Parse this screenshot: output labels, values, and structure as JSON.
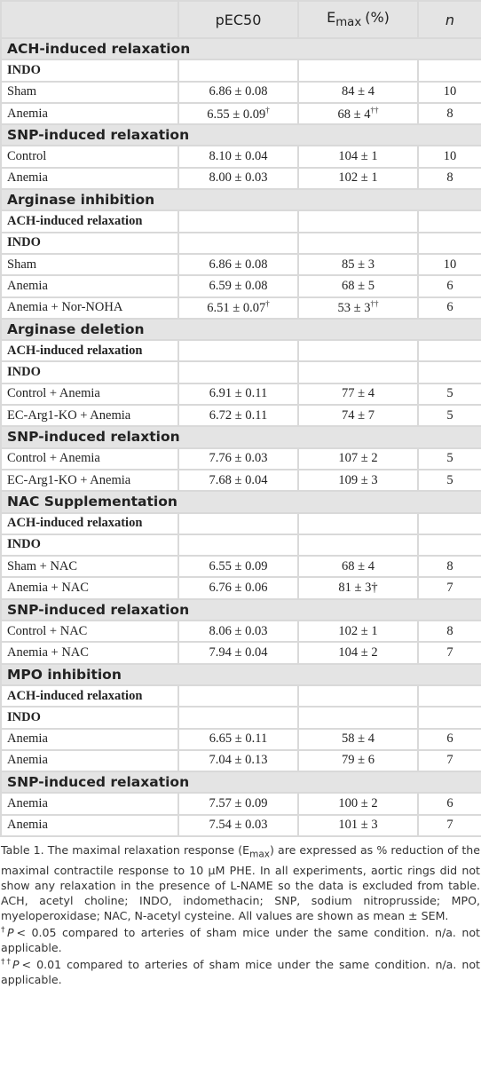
{
  "table": {
    "header": {
      "pec50": "pEC50",
      "emax": {
        "base": "E",
        "sub": "max",
        "tail": "(%)"
      },
      "n": "n"
    },
    "rows": [
      {
        "section": "ACH-induced relaxation"
      },
      {
        "label": "INDO"
      },
      {
        "cells": [
          "Sham",
          "6.86 ± 0.08",
          "84 ± 4",
          "10"
        ]
      },
      {
        "cells": [
          "Anemia",
          {
            "text": "6.55 ± 0.09",
            "sup": "†"
          },
          {
            "text": "68 ± 4",
            "sup": "††"
          },
          "8"
        ]
      },
      {
        "section": "SNP-induced relaxation"
      },
      {
        "cells": [
          "Control",
          "8.10 ± 0.04",
          "104 ± 1",
          "10"
        ]
      },
      {
        "cells": [
          "Anemia",
          "8.00 ± 0.03",
          "102 ± 1",
          "8"
        ]
      },
      {
        "section": "Arginase inhibition"
      },
      {
        "label": "ACH-induced relaxation"
      },
      {
        "label": "INDO"
      },
      {
        "cells": [
          "Sham",
          "6.86 ± 0.08",
          "85 ± 3",
          "10"
        ]
      },
      {
        "cells": [
          "Anemia",
          "6.59 ± 0.08",
          "68 ± 5",
          "6"
        ]
      },
      {
        "cells": [
          "Anemia + Nor-NOHA",
          {
            "text": "6.51 ± 0.07",
            "sup": "†"
          },
          {
            "text": "53 ± 3",
            "sup": "††"
          },
          "6"
        ]
      },
      {
        "section": "Arginase deletion"
      },
      {
        "label": "ACH-induced relaxation"
      },
      {
        "label": "INDO"
      },
      {
        "cells": [
          "Control + Anemia",
          "6.91 ± 0.11",
          "77 ± 4",
          "5"
        ]
      },
      {
        "cells": [
          "EC-Arg1-KO + Anemia",
          "6.72 ± 0.11",
          "74 ± 7",
          "5"
        ]
      },
      {
        "section": "SNP-induced relaxtion"
      },
      {
        "cells": [
          "Control + Anemia",
          "7.76 ± 0.03",
          "107 ± 2",
          "5"
        ]
      },
      {
        "cells": [
          "EC-Arg1-KO + Anemia",
          "7.68 ± 0.04",
          "109 ± 3",
          "5"
        ]
      },
      {
        "section": "NAC Supplementation"
      },
      {
        "label": "ACH-induced relaxation"
      },
      {
        "label": "INDO"
      },
      {
        "cells": [
          "Sham + NAC",
          "6.55 ± 0.09",
          "68 ± 4",
          "8"
        ]
      },
      {
        "cells": [
          "Anemia + NAC",
          "6.76 ± 0.06",
          "81 ± 3†",
          "7"
        ]
      },
      {
        "section": "SNP-induced relaxation"
      },
      {
        "cells": [
          "Control + NAC",
          "8.06 ± 0.03",
          "102 ± 1",
          "8"
        ]
      },
      {
        "cells": [
          "Anemia + NAC",
          "7.94 ± 0.04",
          "104 ± 2",
          "7"
        ]
      },
      {
        "section": "MPO inhibition"
      },
      {
        "label": "ACH-induced relaxation"
      },
      {
        "label": "INDO"
      },
      {
        "cells": [
          "Anemia",
          "6.65 ± 0.11",
          "58 ± 4",
          "6"
        ]
      },
      {
        "cells": [
          "Anemia",
          "7.04 ± 0.13",
          "79 ± 6",
          "7"
        ]
      },
      {
        "section": "SNP-induced relaxation"
      },
      {
        "cells": [
          "Anemia",
          "7.57 ± 0.09",
          "100 ± 2",
          "6"
        ]
      },
      {
        "cells": [
          "Anemia",
          "7.54 ± 0.03",
          "101 ± 3",
          "7"
        ]
      }
    ]
  },
  "caption": {
    "before": "Table 1. The maximal relaxation response (E",
    "sub": "max",
    "after": ") are expressed as % reduction of the maximal contractile response to 10 µM PHE. In all experiments, aortic rings did not show any relaxation in the presence of L-NAME so the data is excluded from table. ACH, acetyl choline; INDO, indomethacin; SNP, sodium nitroprusside; MPO, myeloperoxidase; NAC, N-acetyl cysteine. All values are shown as mean ± SEM."
  },
  "footnotes": [
    {
      "sup": "†",
      "italic": "P",
      "text": "< 0.05 compared to arteries of sham mice under the same condition. n/a. not applicable."
    },
    {
      "sup": "††",
      "italic": "P",
      "text": "< 0.01 compared to arteries of sham mice under the same condition. n/a. not applicable."
    }
  ]
}
